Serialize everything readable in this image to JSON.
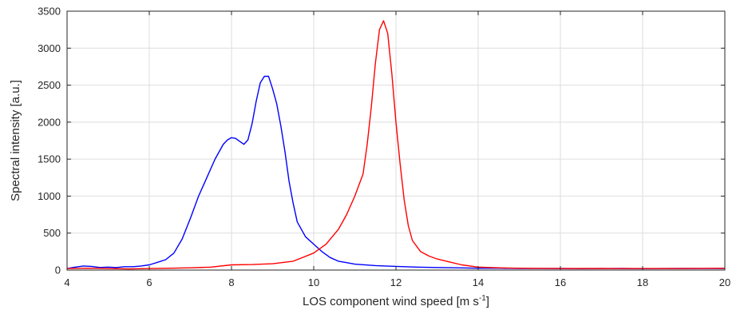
{
  "chart_data": {
    "type": "line",
    "title": "",
    "xlabel": "LOS component wind speed [m s",
    "xlabel_sup": "-1",
    "xlabel_end": "]",
    "ylabel": "Spectral intensity [a.u.]",
    "xlim": [
      4,
      20
    ],
    "ylim": [
      0,
      3500
    ],
    "xticks": [
      4,
      6,
      8,
      10,
      12,
      14,
      16,
      18,
      20
    ],
    "yticks": [
      0,
      500,
      1000,
      1500,
      2000,
      2500,
      3000,
      3500
    ],
    "grid": true,
    "legend": "none",
    "series": [
      {
        "color": "#0000ff",
        "x": [
          4.0,
          4.2,
          4.4,
          4.6,
          4.8,
          5.0,
          5.2,
          5.4,
          5.6,
          5.8,
          6.0,
          6.2,
          6.4,
          6.6,
          6.8,
          7.0,
          7.2,
          7.4,
          7.6,
          7.8,
          7.9,
          8.0,
          8.1,
          8.2,
          8.3,
          8.4,
          8.5,
          8.6,
          8.7,
          8.8,
          8.9,
          9.0,
          9.1,
          9.2,
          9.3,
          9.4,
          9.5,
          9.6,
          9.8,
          10.0,
          10.2,
          10.4,
          10.6,
          10.8,
          11.0,
          11.5,
          12.0,
          12.5,
          13.0,
          13.5,
          14.0,
          14.5,
          15.0,
          15.5,
          16.0,
          16.5,
          17.0,
          17.5,
          18.0,
          18.5,
          19.0,
          19.5,
          20.0
        ],
        "y": [
          20,
          40,
          55,
          50,
          35,
          40,
          35,
          45,
          45,
          55,
          70,
          105,
          140,
          230,
          420,
          700,
          1000,
          1250,
          1500,
          1700,
          1760,
          1790,
          1780,
          1740,
          1700,
          1760,
          1980,
          2280,
          2530,
          2620,
          2620,
          2450,
          2250,
          1950,
          1600,
          1200,
          900,
          650,
          450,
          350,
          250,
          170,
          120,
          100,
          80,
          60,
          50,
          40,
          35,
          30,
          25,
          25,
          20,
          20,
          22,
          18,
          20,
          22,
          18,
          20,
          22,
          20,
          22
        ]
      },
      {
        "color": "#ff0000",
        "x": [
          4.0,
          4.5,
          5.0,
          5.5,
          6.0,
          6.5,
          7.0,
          7.5,
          8.0,
          8.5,
          9.0,
          9.5,
          10.0,
          10.3,
          10.6,
          10.8,
          11.0,
          11.2,
          11.3,
          11.4,
          11.5,
          11.6,
          11.7,
          11.8,
          11.9,
          12.0,
          12.1,
          12.2,
          12.3,
          12.4,
          12.6,
          12.8,
          13.0,
          13.3,
          13.6,
          14.0,
          14.5,
          15.0,
          16.0,
          17.0,
          18.0,
          19.0,
          20.0
        ],
        "y": [
          20,
          25,
          20,
          15,
          20,
          25,
          30,
          40,
          70,
          75,
          85,
          120,
          230,
          350,
          550,
          750,
          1000,
          1300,
          1700,
          2200,
          2800,
          3250,
          3370,
          3200,
          2650,
          2000,
          1450,
          950,
          600,
          400,
          250,
          190,
          150,
          110,
          70,
          40,
          30,
          25,
          20,
          22,
          20,
          20,
          25
        ]
      }
    ]
  }
}
